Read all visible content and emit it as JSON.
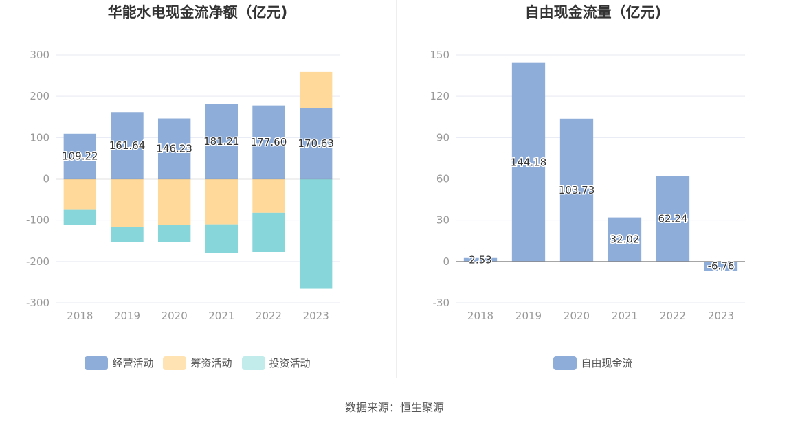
{
  "chart_data": [
    {
      "type": "bar",
      "stacked": true,
      "title": "华能水电现金流净额（亿元)",
      "categories": [
        "2018",
        "2019",
        "2020",
        "2021",
        "2022",
        "2023"
      ],
      "ylim": [
        -300,
        300
      ],
      "yticks": [
        300,
        200,
        100,
        0,
        -100,
        -200,
        -300
      ],
      "grid": true,
      "legend_position": "bottom",
      "series": [
        {
          "name": "经营活动",
          "color": "#8eadd9",
          "values": [
            109.22,
            161.64,
            146.23,
            181.21,
            177.6,
            170.63
          ],
          "labels": [
            "109.22",
            "161.64",
            "146.23",
            "181.21",
            "177.60",
            "170.63"
          ]
        },
        {
          "name": "筹资活动",
          "color": "#ffd99a",
          "values": [
            -75,
            -117,
            -112,
            -110,
            -82,
            88
          ]
        },
        {
          "name": "投资活动",
          "color": "#86d6da",
          "values": [
            -37,
            -36,
            -41,
            -70,
            -95,
            -266
          ]
        }
      ],
      "legend_colors": [
        "#8eadd9",
        "#ffe3b3",
        "#c2ebec"
      ]
    },
    {
      "type": "bar",
      "title": "自由现金流量（亿元)",
      "categories": [
        "2018",
        "2019",
        "2020",
        "2021",
        "2022",
        "2023"
      ],
      "ylim": [
        -30,
        150
      ],
      "yticks": [
        150,
        120,
        90,
        60,
        30,
        0,
        -30
      ],
      "grid": true,
      "legend_position": "bottom",
      "series": [
        {
          "name": "自由现金流",
          "color": "#8eadd9",
          "values": [
            2.53,
            144.18,
            103.73,
            32.02,
            62.24,
            -6.76
          ],
          "labels": [
            "2.53",
            "144.18",
            "103.73",
            "32.02",
            "62.24",
            "-6.76"
          ]
        }
      ]
    }
  ],
  "footer": {
    "source": "数据来源：恒生聚源"
  }
}
